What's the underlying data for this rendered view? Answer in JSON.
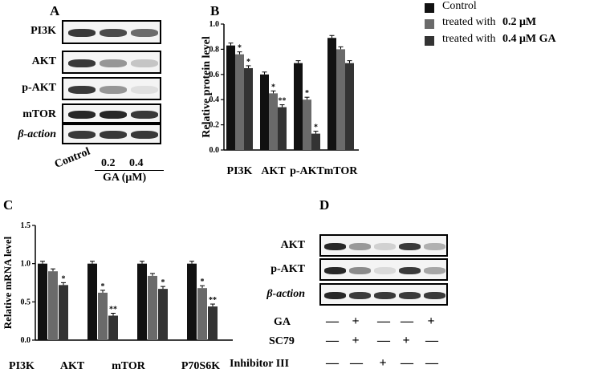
{
  "panels": {
    "a": "A",
    "b": "B",
    "c": "C",
    "d": "D"
  },
  "panel_a": {
    "rows": [
      "PI3K",
      "AKT",
      "p-AKT",
      "mTOR",
      "β-action"
    ],
    "control_label": "Control",
    "doses": [
      "0.2",
      "0.4"
    ],
    "ga_unit": "GA (μM)"
  },
  "legend": {
    "control": "Control",
    "treated_02_prefix": "treated with",
    "treated_02_dose": "0.2 μM",
    "treated_04_prefix": "treated with",
    "treated_04_dose": "0.4 μM GA",
    "colors": {
      "control": "#111111",
      "dose02": "#6a6a6a",
      "dose04": "#333333"
    }
  },
  "chart_data": [
    {
      "type": "bar",
      "ylabel": "Relative  protein level",
      "categories": [
        "PI3K",
        "AKT",
        "p-AKT",
        "mTOR"
      ],
      "series": [
        {
          "name": "Control",
          "values": [
            0.83,
            0.6,
            0.69,
            0.89
          ]
        },
        {
          "name": "treated with 0.2 μM",
          "values": [
            0.76,
            0.45,
            0.4,
            0.8
          ]
        },
        {
          "name": "treated with 0.4 μM GA",
          "values": [
            0.65,
            0.34,
            0.13,
            0.69
          ]
        }
      ],
      "annotations": [
        "",
        "*",
        "*",
        "",
        "*",
        "**",
        "",
        "*",
        "*"
      ],
      "ylim": [
        0,
        1.0
      ],
      "yticks": [
        "0.0",
        "0.2",
        "0.4",
        "0.6",
        "0.8",
        "1.0"
      ]
    },
    {
      "type": "bar",
      "ylabel": "Relative  mRNA level",
      "categories": [
        "PI3K",
        "AKT",
        "mTOR",
        "P70S6K"
      ],
      "series": [
        {
          "values": [
            1.0,
            1.0,
            1.0,
            1.0
          ]
        },
        {
          "values": [
            0.9,
            0.62,
            0.84,
            0.68
          ]
        },
        {
          "values": [
            0.72,
            0.32,
            0.67,
            0.44
          ]
        }
      ],
      "annotations": [
        "",
        "",
        "*",
        "",
        "*",
        "**",
        "",
        "",
        "*",
        "",
        "*",
        "**"
      ],
      "ylim": [
        0,
        1.5
      ],
      "yticks": [
        "0.0",
        "0.5",
        "1.0",
        "1.5"
      ]
    }
  ],
  "panel_c_xlabels": [
    "PI3K",
    "AKT",
    "mTOR",
    "P70S6K"
  ],
  "panel_d": {
    "rows": [
      "AKT",
      "p-AKT",
      "β-action"
    ],
    "conditions": [
      {
        "label": "GA",
        "signs": [
          "—",
          "+",
          "—",
          "—",
          "+"
        ]
      },
      {
        "label": "SC79",
        "signs": [
          "—",
          "+",
          "—",
          "+",
          "—"
        ]
      },
      {
        "label": "Inhibitor III",
        "signs": [
          "—",
          "—",
          "+",
          "—",
          "—"
        ]
      }
    ]
  }
}
